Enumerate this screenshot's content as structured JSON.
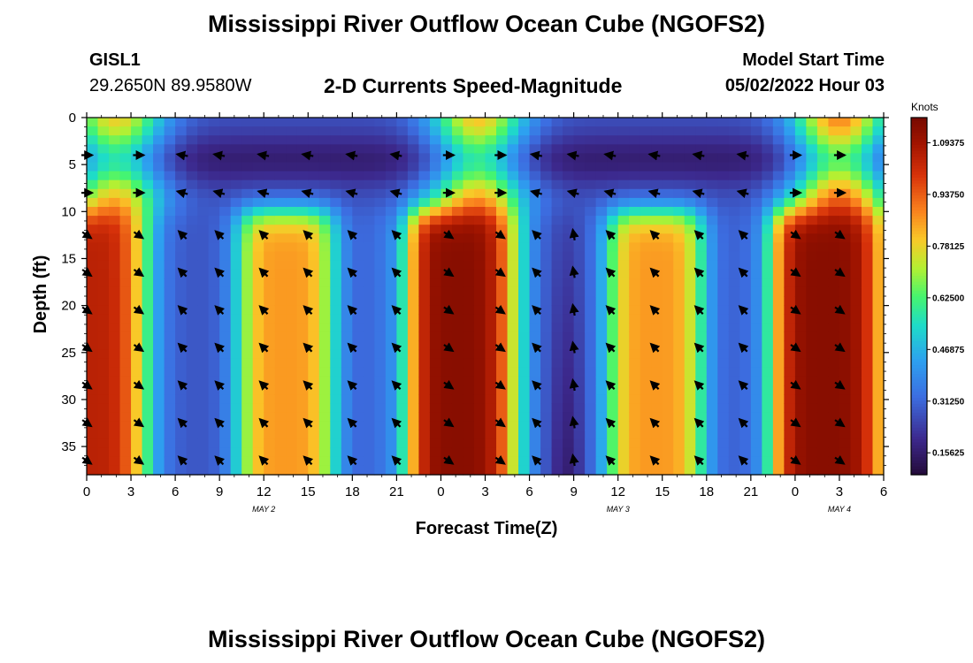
{
  "header": {
    "title": "Mississippi River Outflow Ocean Cube (NGOFS2)",
    "station": "GISL1",
    "coordinates": "29.2650N  89.9580W",
    "subtitle": "2-D Currents Speed-Magnitude",
    "model_start_label": "Model Start Time",
    "model_start_value": "05/02/2022 Hour 03"
  },
  "footer": {
    "repeated_title": "Mississippi River Outflow Ocean Cube (NGOFS2)"
  },
  "chart_data": {
    "type": "heatmap",
    "title": "2-D Currents Speed-Magnitude",
    "xlabel": "Forecast Time(Z)",
    "ylabel": "Depth (ft)",
    "xlim": [
      0,
      54
    ],
    "ylim": [
      0,
      38
    ],
    "y_inverted": true,
    "x_ticks": [
      0,
      3,
      6,
      9,
      12,
      15,
      18,
      21,
      24,
      27,
      30,
      33,
      36,
      39,
      42,
      45,
      48,
      51,
      54
    ],
    "x_tick_labels": [
      "0",
      "3",
      "6",
      "9",
      "12",
      "15",
      "18",
      "21",
      "0",
      "3",
      "6",
      "9",
      "12",
      "15",
      "18",
      "21",
      "0",
      "3",
      "6"
    ],
    "y_ticks": [
      0,
      5,
      10,
      15,
      20,
      25,
      30,
      35
    ],
    "y_tick_labels": [
      "0",
      "5",
      "10",
      "15",
      "20",
      "25",
      "30",
      "35"
    ],
    "day_labels": [
      {
        "label": "MAY 2",
        "hour": 12
      },
      {
        "label": "MAY 3",
        "hour": 36
      },
      {
        "label": "MAY 4",
        "hour": 51
      }
    ],
    "colorbar": {
      "title": "Knots",
      "range": [
        0.09,
        1.17
      ],
      "ticks": [
        0.15625,
        0.3125,
        0.46875,
        0.625,
        0.78125,
        0.9375,
        1.09375
      ],
      "tick_labels": [
        "0.15625",
        "0.31250",
        "0.46875",
        "0.62500",
        "0.78125",
        "0.93750",
        "1.09375"
      ]
    },
    "speed_model": {
      "deep_peak_hours": [
        0,
        13.5,
        25,
        38.5,
        50
      ],
      "deep_peak_speed": [
        1.05,
        0.86,
        1.14,
        0.86,
        1.14
      ],
      "deep_peak_halfwidth": [
        4.2,
        3.4,
        4.3,
        3.4,
        4.4
      ],
      "surface_peak_hours": [
        2,
        26.5,
        51
      ],
      "surface_peak_speed": [
        0.76,
        0.78,
        0.86
      ],
      "slack_hours": [
        7.5,
        20.5,
        32.5,
        45
      ],
      "slack_speed": 0.26,
      "layer_transition_depth_ft": 10
    },
    "vector_rows_depth_ft": [
      4,
      8,
      12.5,
      16.5,
      20.5,
      24.5,
      28.5,
      32.5,
      36.5
    ],
    "vector_cols_hour": [
      0,
      3.5,
      6.5,
      9,
      12,
      15,
      18,
      21,
      24.5,
      28,
      30.5,
      33,
      35.5,
      38.5,
      41.5,
      44.5,
      48,
      51
    ],
    "vector_note": "Direction in degrees (0 = east, 90 = north); arrows point in the flow direction.",
    "vector_direction_model": {
      "ebb_direction_deg": -35,
      "flood_direction_deg": 135,
      "surface_flood_direction_deg": 165,
      "surface_ebb_direction_deg": 0
    }
  }
}
